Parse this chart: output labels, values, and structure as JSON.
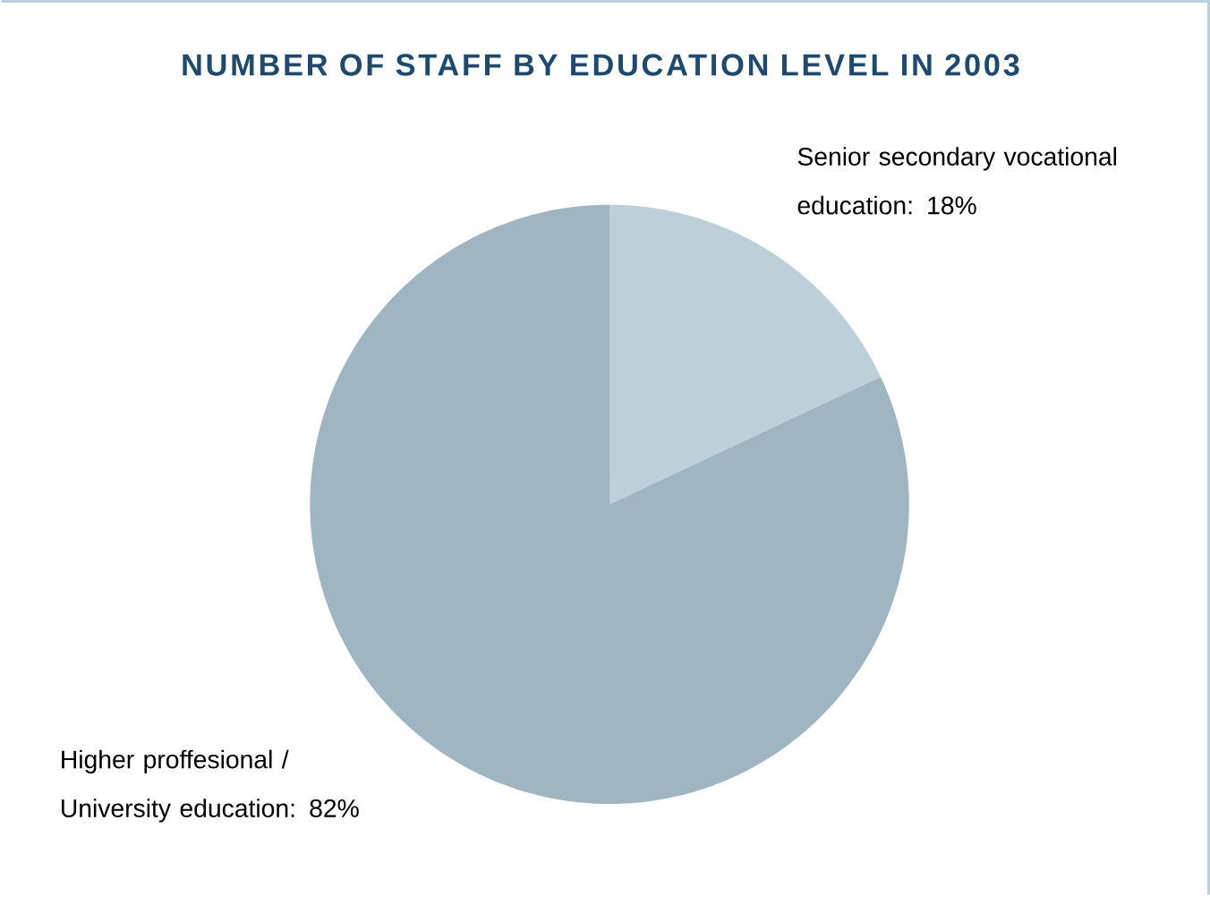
{
  "chart_data": {
    "type": "pie",
    "title": "NUMBER OF STAFF BY EDUCATION LEVEL IN 2003",
    "categories": [
      "Senior secondary vocational education: 18%",
      "Higher proffesional / University education: 82%"
    ],
    "values": [
      18,
      82
    ],
    "colors": [
      "#bdd0d9",
      "#9fb5c1"
    ]
  }
}
